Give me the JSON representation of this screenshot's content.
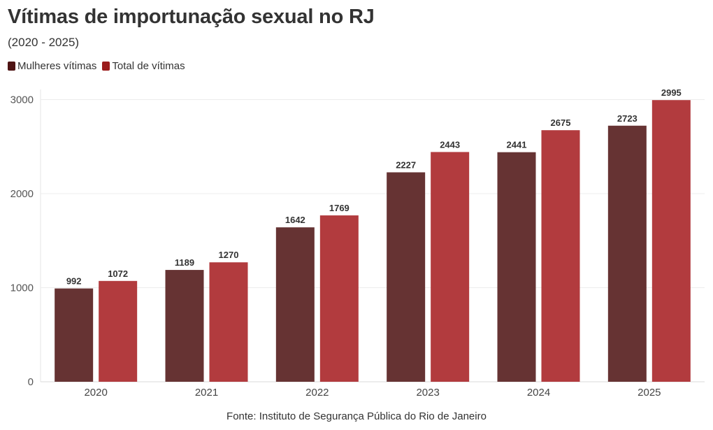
{
  "header": {
    "title": "Vítimas de importunação sexual no RJ",
    "subtitle": "(2020 - 2025)"
  },
  "legend": [
    {
      "label": "Mulheres vítimas",
      "color": "#4e1414"
    },
    {
      "label": "Total de vítimas",
      "color": "#9b1c1c"
    }
  ],
  "chart_data": {
    "type": "bar",
    "categories": [
      "2020",
      "2021",
      "2022",
      "2023",
      "2024",
      "2025"
    ],
    "series": [
      {
        "name": "Mulheres vítimas",
        "color": "#663333",
        "values": [
          992,
          1189,
          1642,
          2227,
          2441,
          2723
        ]
      },
      {
        "name": "Total de vítimas",
        "color": "#b23b3e",
        "values": [
          1072,
          1270,
          1769,
          2443,
          2675,
          2995
        ]
      }
    ],
    "yticks": [
      0,
      1000,
      2000,
      3000
    ],
    "ylim": [
      0,
      3000
    ],
    "grid": true,
    "legend_position": "top-left",
    "data_labels": true
  },
  "footer": {
    "source": "Fonte: Instituto de Segurança Pública do Rio de Janeiro"
  }
}
